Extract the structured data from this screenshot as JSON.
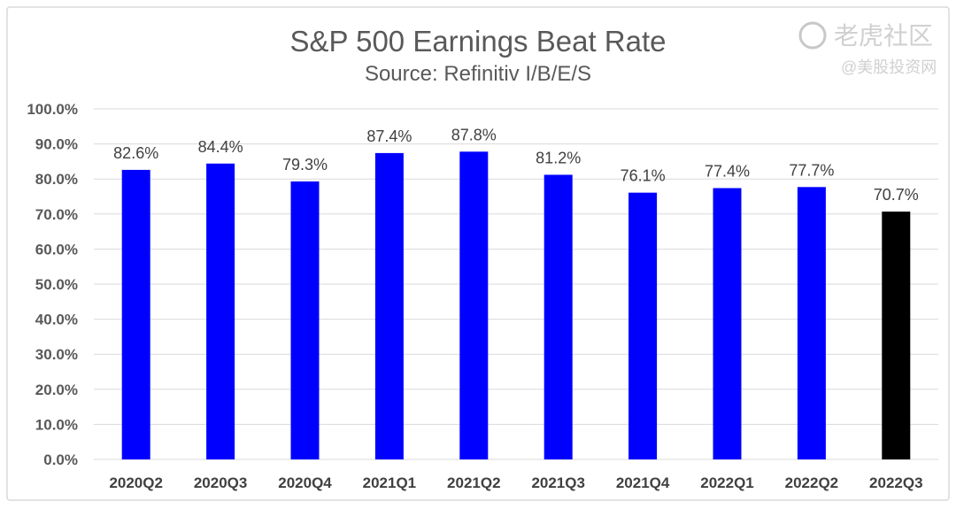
{
  "chart_data": {
    "type": "bar",
    "title": "S&P 500 Earnings Beat Rate",
    "subtitle": "Source: Refinitiv I/B/E/S",
    "categories": [
      "2020Q2",
      "2020Q3",
      "2020Q4",
      "2021Q1",
      "2021Q2",
      "2021Q3",
      "2021Q4",
      "2022Q1",
      "2022Q2",
      "2022Q3"
    ],
    "values": [
      82.6,
      84.4,
      79.3,
      87.4,
      87.8,
      81.2,
      76.1,
      77.4,
      77.7,
      70.7
    ],
    "data_labels": [
      "82.6%",
      "84.4%",
      "79.3%",
      "87.4%",
      "87.8%",
      "81.2%",
      "76.1%",
      "77.4%",
      "77.7%",
      "70.7%"
    ],
    "bar_colors": [
      "#0000ff",
      "#0000ff",
      "#0000ff",
      "#0000ff",
      "#0000ff",
      "#0000ff",
      "#0000ff",
      "#0000ff",
      "#0000ff",
      "#000000"
    ],
    "yticks": [
      "0.0%",
      "10.0%",
      "20.0%",
      "30.0%",
      "40.0%",
      "50.0%",
      "60.0%",
      "70.0%",
      "80.0%",
      "90.0%",
      "100.0%"
    ],
    "ylim": [
      0,
      100
    ],
    "xlabel": "",
    "ylabel": "",
    "grid": true,
    "legend": "none"
  },
  "watermark": {
    "line1": "老虎社区",
    "line2": "@美股投资网"
  }
}
